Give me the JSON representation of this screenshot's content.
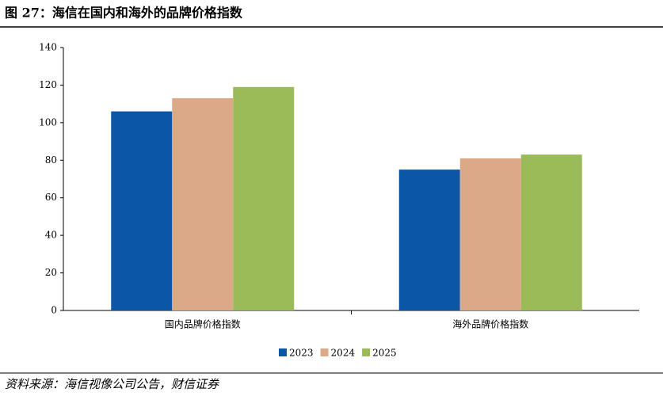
{
  "chart_data": {
    "type": "bar",
    "title": "图 27：海信在国内和海外的品牌价格指数",
    "source": "资料来源：海信视像公司公告，财信证券",
    "categories": [
      "国内品牌价格指数",
      "海外品牌价格指数"
    ],
    "series": [
      {
        "name": "2023",
        "color": "#0b56a7",
        "values": [
          106,
          75
        ]
      },
      {
        "name": "2024",
        "color": "#dba988",
        "values": [
          113,
          81
        ]
      },
      {
        "name": "2025",
        "color": "#9bbb59",
        "values": [
          119,
          83
        ]
      }
    ],
    "ylim": [
      0,
      140
    ],
    "yticks": [
      0,
      20,
      40,
      60,
      80,
      100,
      120,
      140
    ],
    "grid": false
  }
}
